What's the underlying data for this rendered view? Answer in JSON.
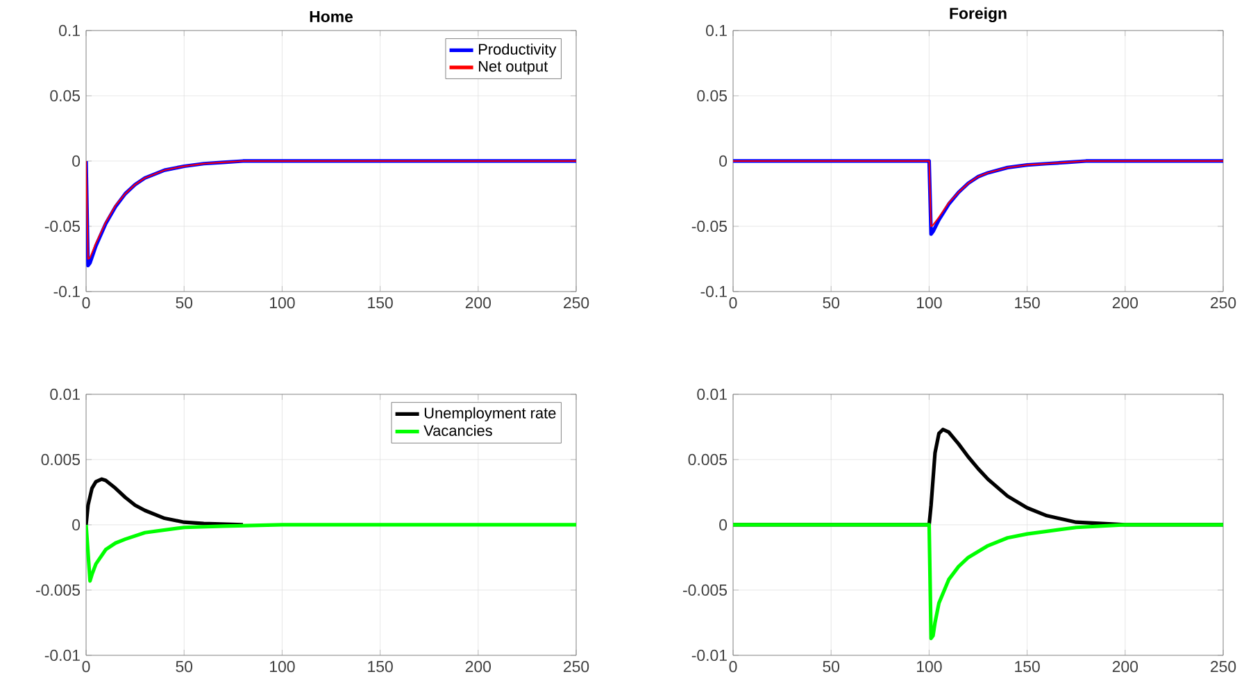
{
  "chart_data": [
    {
      "type": "line",
      "title": "Home",
      "xlim": [
        0,
        250
      ],
      "xticks": [
        0,
        50,
        100,
        150,
        200,
        250
      ],
      "ylim": [
        -0.1,
        0.1
      ],
      "yticks": [
        -0.1,
        -0.05,
        0,
        0.05,
        0.1
      ],
      "grid": true,
      "legend": "top right",
      "series": [
        {
          "name": "Productivity",
          "color": "#0000ff",
          "x": [
            0,
            1,
            2,
            5,
            10,
            15,
            20,
            25,
            30,
            40,
            50,
            60,
            70,
            80,
            100,
            150,
            250
          ],
          "values": [
            0,
            -0.08,
            -0.078,
            -0.065,
            -0.048,
            -0.035,
            -0.025,
            -0.018,
            -0.013,
            -0.007,
            -0.004,
            -0.002,
            -0.001,
            0,
            0,
            0,
            0
          ]
        },
        {
          "name": "Net output",
          "color": "#ff0000",
          "x": [
            0,
            1,
            2,
            5,
            10,
            15,
            20,
            25,
            30,
            40,
            50,
            60,
            70,
            80,
            100,
            150,
            250
          ],
          "values": [
            0,
            -0.075,
            -0.074,
            -0.063,
            -0.047,
            -0.034,
            -0.025,
            -0.018,
            -0.013,
            -0.007,
            -0.004,
            -0.002,
            -0.001,
            0,
            0,
            0,
            0
          ]
        }
      ]
    },
    {
      "type": "line",
      "title": "Foreign",
      "xlim": [
        0,
        250
      ],
      "xticks": [
        0,
        50,
        100,
        150,
        200,
        250
      ],
      "ylim": [
        -0.1,
        0.1
      ],
      "yticks": [
        -0.1,
        -0.05,
        0,
        0.05,
        0.1
      ],
      "grid": true,
      "series": [
        {
          "color": "#0000ff",
          "x": [
            0,
            100,
            101,
            102,
            105,
            110,
            115,
            120,
            125,
            130,
            140,
            150,
            160,
            170,
            180,
            200,
            250
          ],
          "values": [
            0,
            0,
            -0.056,
            -0.054,
            -0.045,
            -0.033,
            -0.024,
            -0.017,
            -0.012,
            -0.009,
            -0.005,
            -0.003,
            -0.002,
            -0.001,
            0,
            0,
            0
          ]
        },
        {
          "color": "#ff0000",
          "x": [
            0,
            100,
            101,
            102,
            105,
            110,
            115,
            120,
            125,
            130,
            140,
            150,
            160,
            170,
            180,
            200,
            250
          ],
          "values": [
            0,
            0,
            -0.05,
            -0.049,
            -0.043,
            -0.032,
            -0.024,
            -0.017,
            -0.012,
            -0.009,
            -0.005,
            -0.003,
            -0.002,
            -0.001,
            0,
            0,
            0
          ]
        }
      ]
    },
    {
      "type": "line",
      "xlim": [
        0,
        250
      ],
      "xticks": [
        0,
        50,
        100,
        150,
        200,
        250
      ],
      "ylim": [
        -0.01,
        0.01
      ],
      "yticks": [
        -0.01,
        -0.005,
        0,
        0.005,
        0.01
      ],
      "grid": true,
      "legend": "top right",
      "series": [
        {
          "name": "Unemployment rate",
          "color": "#000000",
          "x": [
            0,
            1,
            3,
            5,
            8,
            10,
            15,
            20,
            25,
            30,
            40,
            50,
            60,
            80
          ],
          "values": [
            0,
            0.0015,
            0.0028,
            0.0033,
            0.0035,
            0.0034,
            0.0028,
            0.0021,
            0.0015,
            0.0011,
            0.0005,
            0.0002,
            0.0001,
            0
          ]
        },
        {
          "name": "Vacancies",
          "color": "#00ff00",
          "x": [
            0,
            2,
            3,
            5,
            10,
            15,
            20,
            30,
            40,
            50,
            70,
            100,
            250
          ],
          "values": [
            0,
            -0.0043,
            -0.0038,
            -0.003,
            -0.0019,
            -0.0014,
            -0.0011,
            -0.0006,
            -0.0004,
            -0.0002,
            -0.0001,
            0,
            0
          ]
        }
      ]
    },
    {
      "type": "line",
      "xlim": [
        0,
        250
      ],
      "xticks": [
        0,
        50,
        100,
        150,
        200,
        250
      ],
      "ylim": [
        -0.01,
        0.01
      ],
      "yticks": [
        -0.01,
        -0.005,
        0,
        0.005,
        0.01
      ],
      "grid": true,
      "series": [
        {
          "color": "#000000",
          "x": [
            0,
            100,
            101,
            103,
            105,
            107,
            110,
            115,
            120,
            125,
            130,
            140,
            150,
            160,
            175,
            200,
            250
          ],
          "values": [
            0,
            0,
            0.0015,
            0.0055,
            0.007,
            0.0073,
            0.0071,
            0.0062,
            0.0052,
            0.0043,
            0.0035,
            0.0022,
            0.0013,
            0.0007,
            0.0002,
            0,
            0
          ]
        },
        {
          "color": "#00ff00",
          "x": [
            0,
            100,
            101,
            102,
            103,
            105,
            110,
            115,
            120,
            130,
            140,
            150,
            175,
            200,
            250
          ],
          "values": [
            0,
            0,
            -0.0087,
            -0.0085,
            -0.0075,
            -0.006,
            -0.0042,
            -0.0032,
            -0.0025,
            -0.0016,
            -0.001,
            -0.0007,
            -0.0002,
            0,
            0
          ]
        }
      ]
    }
  ]
}
